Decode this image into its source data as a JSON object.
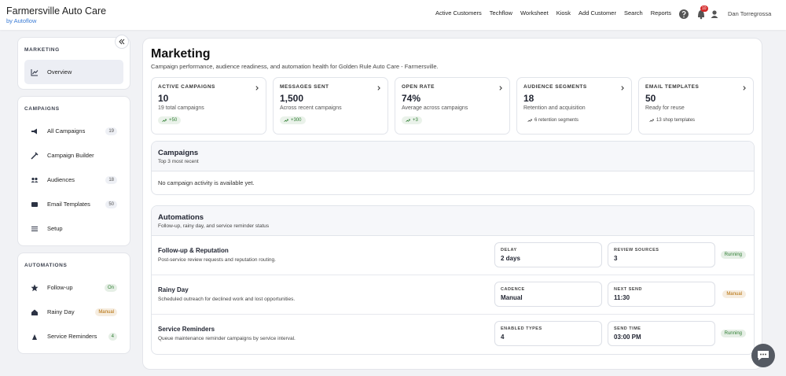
{
  "header": {
    "brand": "Farmersville  Auto Care",
    "sub": "by Autoflow",
    "nav": [
      "Active Customers",
      "Techflow",
      "Worksheet",
      "Kiosk",
      "Add Customer",
      "Search",
      "Reports"
    ],
    "notifications": "10",
    "user": "Dan Torregrossa"
  },
  "sidebar": [
    {
      "title": "MARKETING",
      "items": [
        {
          "label": "Overview"
        }
      ]
    },
    {
      "title": "CAMPAIGNS",
      "items": [
        {
          "label": "All Campaigns",
          "badge": {
            "text": "19",
            "color": "#555"
          }
        },
        {
          "label": "Campaign Builder"
        },
        {
          "label": "Audiences",
          "badge": {
            "text": "18",
            "color": "#555"
          }
        },
        {
          "label": "Email Templates",
          "badge": {
            "text": "50",
            "color": "#555"
          }
        },
        {
          "label": "Setup"
        }
      ]
    },
    {
      "title": "AUTOMATIONS",
      "items": [
        {
          "label": "Follow-up",
          "badge": {
            "text": "On",
            "color": "#2e7d32"
          }
        },
        {
          "label": "Rainy Day",
          "badge": {
            "text": "Manual",
            "color": "#b26a00"
          }
        },
        {
          "label": "Service Reminders",
          "badge": {
            "text": "4",
            "color": "#2e7d32"
          }
        }
      ]
    }
  ],
  "main": {
    "title": "Marketing",
    "subtitle": "Campaign performance, audience readiness, and automation health for Golden Rule Auto Care - Farmersville.",
    "stats": [
      {
        "label": "ACTIVE CAMPAIGNS",
        "value": "10",
        "sub": "19 total campaigns",
        "chip": {
          "text": "+50",
          "color": "#2e7d32"
        }
      },
      {
        "label": "MESSAGES SENT",
        "value": "1,500",
        "sub": "Across recent campaigns",
        "chip": {
          "text": "+300",
          "color": "#2e7d32"
        }
      },
      {
        "label": "OPEN RATE",
        "value": "74%",
        "sub": "Average across campaigns",
        "chip": {
          "text": "+3",
          "color": "#2e7d32"
        }
      },
      {
        "label": "AUDIENCE SEGMENTS",
        "value": "18",
        "sub": "Retention and acquisition",
        "chip": {
          "text": "6 retention segments",
          "color": "#444"
        }
      },
      {
        "label": "EMAIL TEMPLATES",
        "value": "50",
        "sub": "Ready for reuse",
        "chip": {
          "text": "13 shop templates",
          "color": "#444"
        }
      }
    ],
    "campaigns": {
      "title": "Campaigns",
      "subtitle": "Top 3 most recent",
      "empty": "No campaign activity is available yet."
    },
    "automations": {
      "title": "Automations",
      "subtitle": "Follow-up, rainy day, and service reminder status",
      "rows": [
        {
          "name": "Follow-up & Reputation",
          "desc": "Post-service review requests and reputation routing.",
          "fields": [
            {
              "label": "DELAY",
              "value": "2 days"
            },
            {
              "label": "REVIEW SOURCES",
              "value": "3"
            }
          ],
          "status": {
            "text": "Running",
            "color": "#2e7d32"
          }
        },
        {
          "name": "Rainy Day",
          "desc": "Scheduled outreach for declined work and lost opportunities.",
          "fields": [
            {
              "label": "CADENCE",
              "value": "Manual"
            },
            {
              "label": "NEXT SEND",
              "value": "11:30"
            }
          ],
          "status": {
            "text": "Manual",
            "color": "#b26a00"
          }
        },
        {
          "name": "Service Reminders",
          "desc": "Queue maintenance reminder campaigns by service interval.",
          "fields": [
            {
              "label": "ENABLED TYPES",
              "value": "4"
            },
            {
              "label": "SEND TIME",
              "value": "03:00 PM"
            }
          ],
          "status": {
            "text": "Running",
            "color": "#2e7d32"
          }
        }
      ]
    }
  }
}
